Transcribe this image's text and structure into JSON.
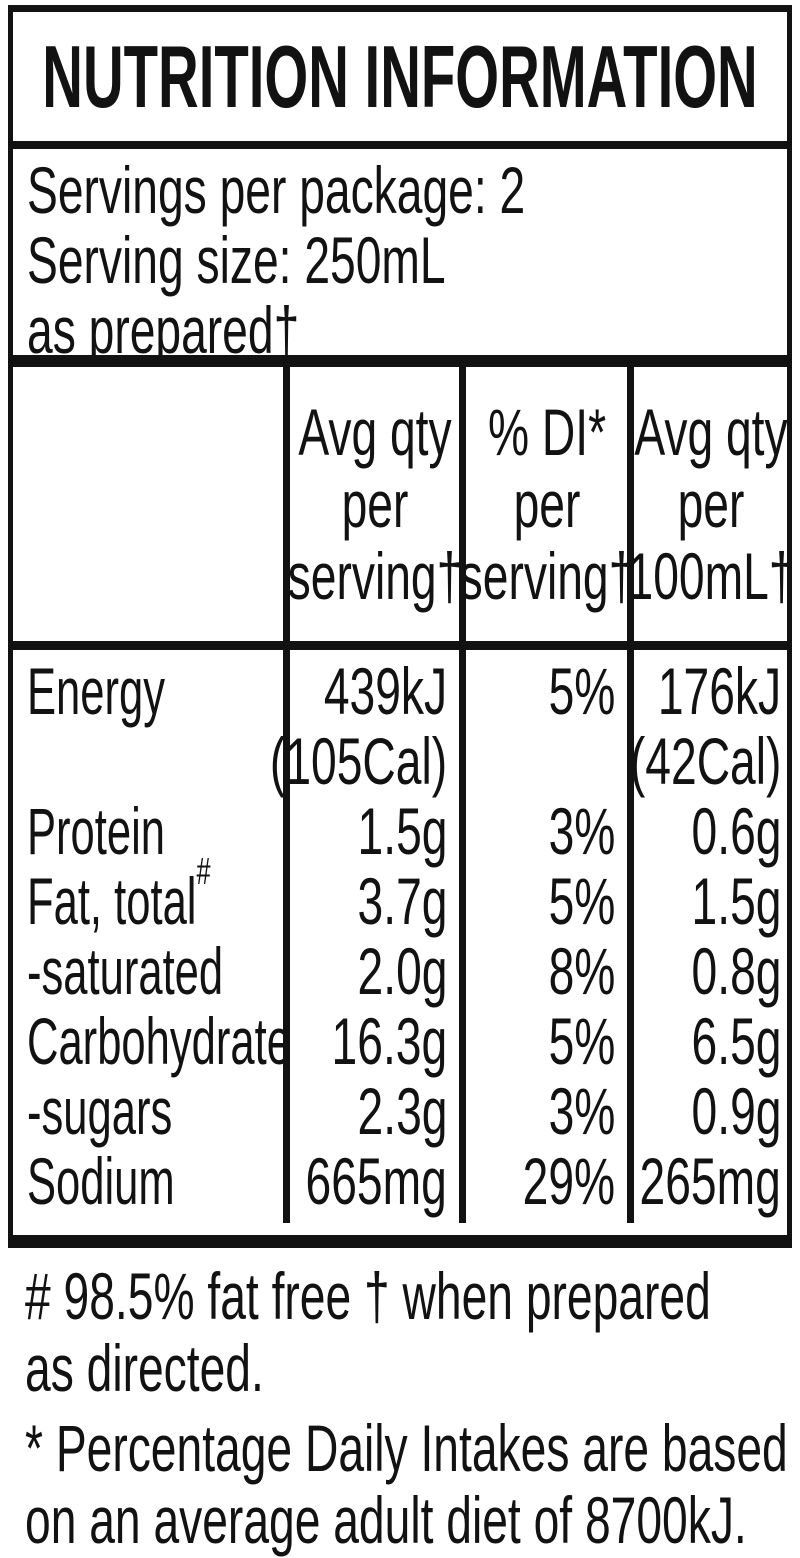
{
  "label": {
    "title": "NUTRITION INFORMATION",
    "servings": {
      "line1": "Servings per package: 2",
      "line2": "Serving size: 250mL",
      "line3": "as prepared†"
    },
    "table": {
      "header": {
        "col2": [
          "Avg qty",
          "per",
          "serving†"
        ],
        "col3": [
          "% DI*",
          "per",
          "serving†"
        ],
        "col4": [
          "Avg qty",
          "per",
          "100mL†"
        ]
      },
      "rows": [
        {
          "label": "Energy",
          "qty": "439kJ",
          "qty_cal": "(105Cal)",
          "di": "5%",
          "per100": "176kJ",
          "per100_cal": "(42Cal)"
        },
        {
          "label": "Protein",
          "qty": "1.5g",
          "di": "3%",
          "per100": "0.6g"
        },
        {
          "label": "Fat, total",
          "label_sup": "#",
          "qty": "3.7g",
          "di": "5%",
          "per100": "1.5g"
        },
        {
          "label": "-saturated",
          "qty": "2.0g",
          "di": "8%",
          "per100": "0.8g"
        },
        {
          "label": "Carbohydrate",
          "qty": "16.3g",
          "di": "5%",
          "per100": "6.5g"
        },
        {
          "label": "-sugars",
          "qty": "2.3g",
          "di": "3%",
          "per100": "0.9g"
        },
        {
          "label": "Sodium",
          "qty": "665mg",
          "di": "29%",
          "per100": "265mg"
        }
      ]
    },
    "footnotes": {
      "fat_free": [
        "# 98.5% fat free † when prepared",
        "as directed."
      ],
      "daily_intake": [
        "* Percentage Daily Intakes are based",
        "on an average adult diet of 8700kJ."
      ]
    },
    "colors": {
      "ink": "#121212",
      "background": "#ffffff"
    }
  }
}
